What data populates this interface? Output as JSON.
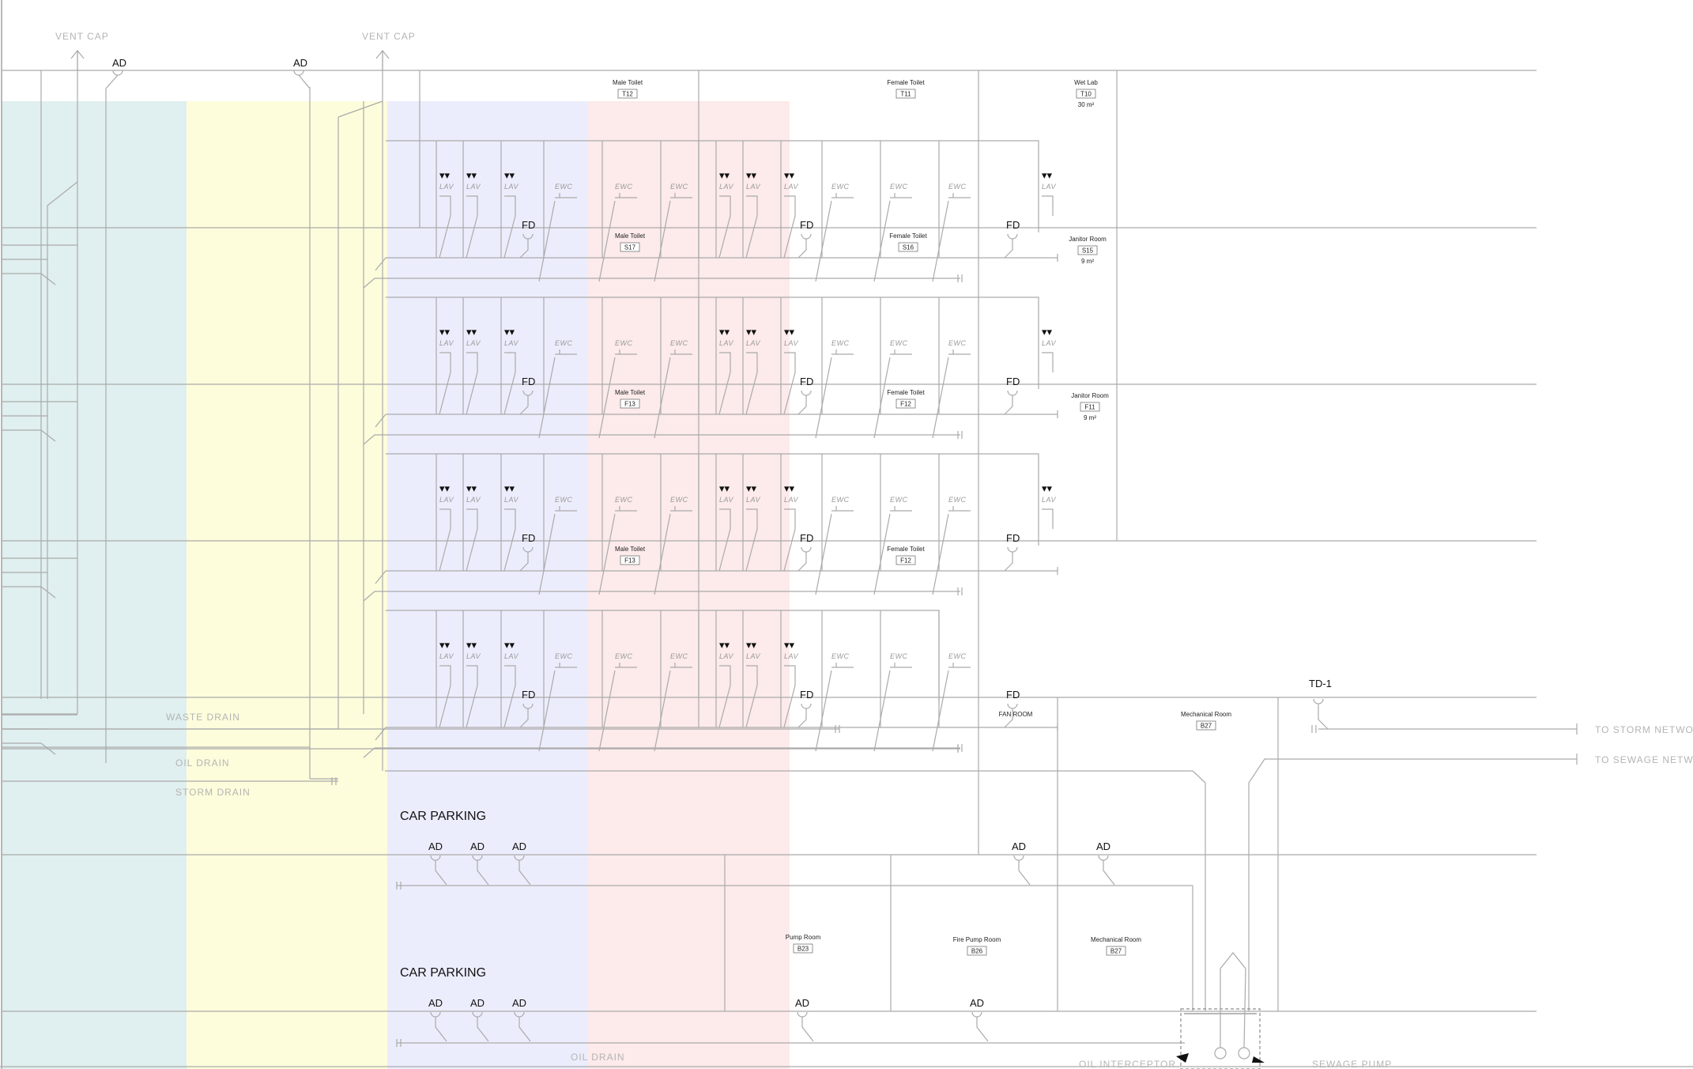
{
  "drawing": {
    "zones": [
      {
        "name": "zone-teal",
        "color": "#e0efef"
      },
      {
        "name": "zone-yellow",
        "color": "#fdfddc"
      },
      {
        "name": "zone-blue",
        "color": "#ecedfc"
      },
      {
        "name": "zone-red",
        "color": "#fdeaea"
      }
    ],
    "vent_caps": [
      "VENT CAP",
      "VENT CAP"
    ],
    "ad_label": "AD",
    "fd_label": "FD",
    "td_label": "TD-1",
    "fixtures": {
      "lav": "LAV",
      "ewc": "EWC",
      "lav_marker": "▾▾"
    },
    "rooms": [
      {
        "key": "male-toilet-t12",
        "name": "Male Toilet",
        "tag": "T12",
        "area": ""
      },
      {
        "key": "female-toilet-t11",
        "name": "Female Toilet",
        "tag": "T11",
        "area": ""
      },
      {
        "key": "wet-lab-t10",
        "name": "Wet Lab",
        "tag": "T10",
        "area": "30 m²"
      },
      {
        "key": "male-toilet-s17",
        "name": "Male Toilet",
        "tag": "S17",
        "area": ""
      },
      {
        "key": "female-toilet-s16",
        "name": "Female Toilet",
        "tag": "S16",
        "area": ""
      },
      {
        "key": "janitor-room-s15",
        "name": "Janitor Room",
        "tag": "S15",
        "area": "9 m²"
      },
      {
        "key": "male-toilet-f13-a",
        "name": "Male Toilet",
        "tag": "F13",
        "area": ""
      },
      {
        "key": "female-toilet-f12-a",
        "name": "Female Toilet",
        "tag": "F12",
        "area": ""
      },
      {
        "key": "janitor-room-f11",
        "name": "Janitor Room",
        "tag": "F11",
        "area": "9 m²"
      },
      {
        "key": "male-toilet-f13-b",
        "name": "Male Toilet",
        "tag": "F13",
        "area": ""
      },
      {
        "key": "female-toilet-f12-b",
        "name": "Female Toilet",
        "tag": "F12",
        "area": ""
      },
      {
        "key": "fan-room",
        "name": "FAN ROOM",
        "tag": "",
        "area": ""
      },
      {
        "key": "mechanical-room-a",
        "name": "Mechanical Room",
        "tag": "B27",
        "area": ""
      },
      {
        "key": "pump-room",
        "name": "Pump Room",
        "tag": "B23",
        "area": ""
      },
      {
        "key": "fire-pump-room",
        "name": "Fire Pump Room",
        "tag": "B26",
        "area": ""
      },
      {
        "key": "mechanical-room-b",
        "name": "Mechanical Room",
        "tag": "B27",
        "area": ""
      }
    ],
    "car_parking": [
      "CAR PARKING",
      "CAR PARKING"
    ],
    "ghost_labels": {
      "waste_drain": "WASTE DRAIN",
      "oil_drain_upper": "OIL DRAIN",
      "storm_drain": "STORM DRAIN",
      "oil_drain_lower": "OIL DRAIN",
      "oil_interceptor": "OIL INTERCEPTOR",
      "sewage_pump": "SEWAGE PUMP",
      "to_storm_network": "TO STORM NETWORK",
      "to_sewage_network": "TO SEWAGE NETWORK"
    }
  }
}
